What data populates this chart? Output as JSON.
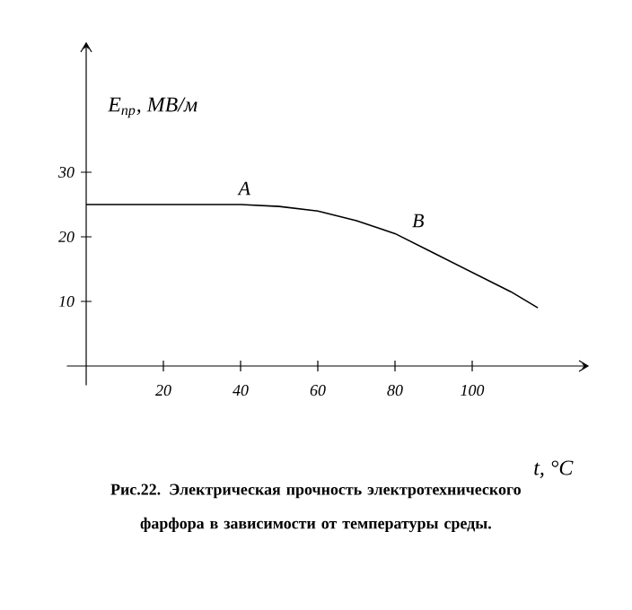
{
  "chart_data": {
    "type": "line",
    "xlabel": "t, °C",
    "ylabel": "E$_{пр}$, МВ/м",
    "x": [
      0,
      20,
      40,
      50,
      60,
      70,
      80,
      90,
      100,
      110,
      117
    ],
    "values": [
      25,
      25,
      25,
      24.7,
      24,
      22.5,
      20.5,
      17.5,
      14.5,
      11.5,
      9
    ],
    "color": "#000000",
    "xlim": [
      -5,
      130
    ],
    "ylim": [
      -3,
      50
    ],
    "xticks": [
      20,
      40,
      60,
      80,
      100
    ],
    "yticks": [
      10,
      20,
      30
    ],
    "grid": false,
    "marker": "none",
    "line_style": "solid",
    "annotations": [
      "A",
      "B",
      "Рис.22.  Электрическая прочность электротехнического фарфора в зависимости от температуры среды."
    ]
  }
}
